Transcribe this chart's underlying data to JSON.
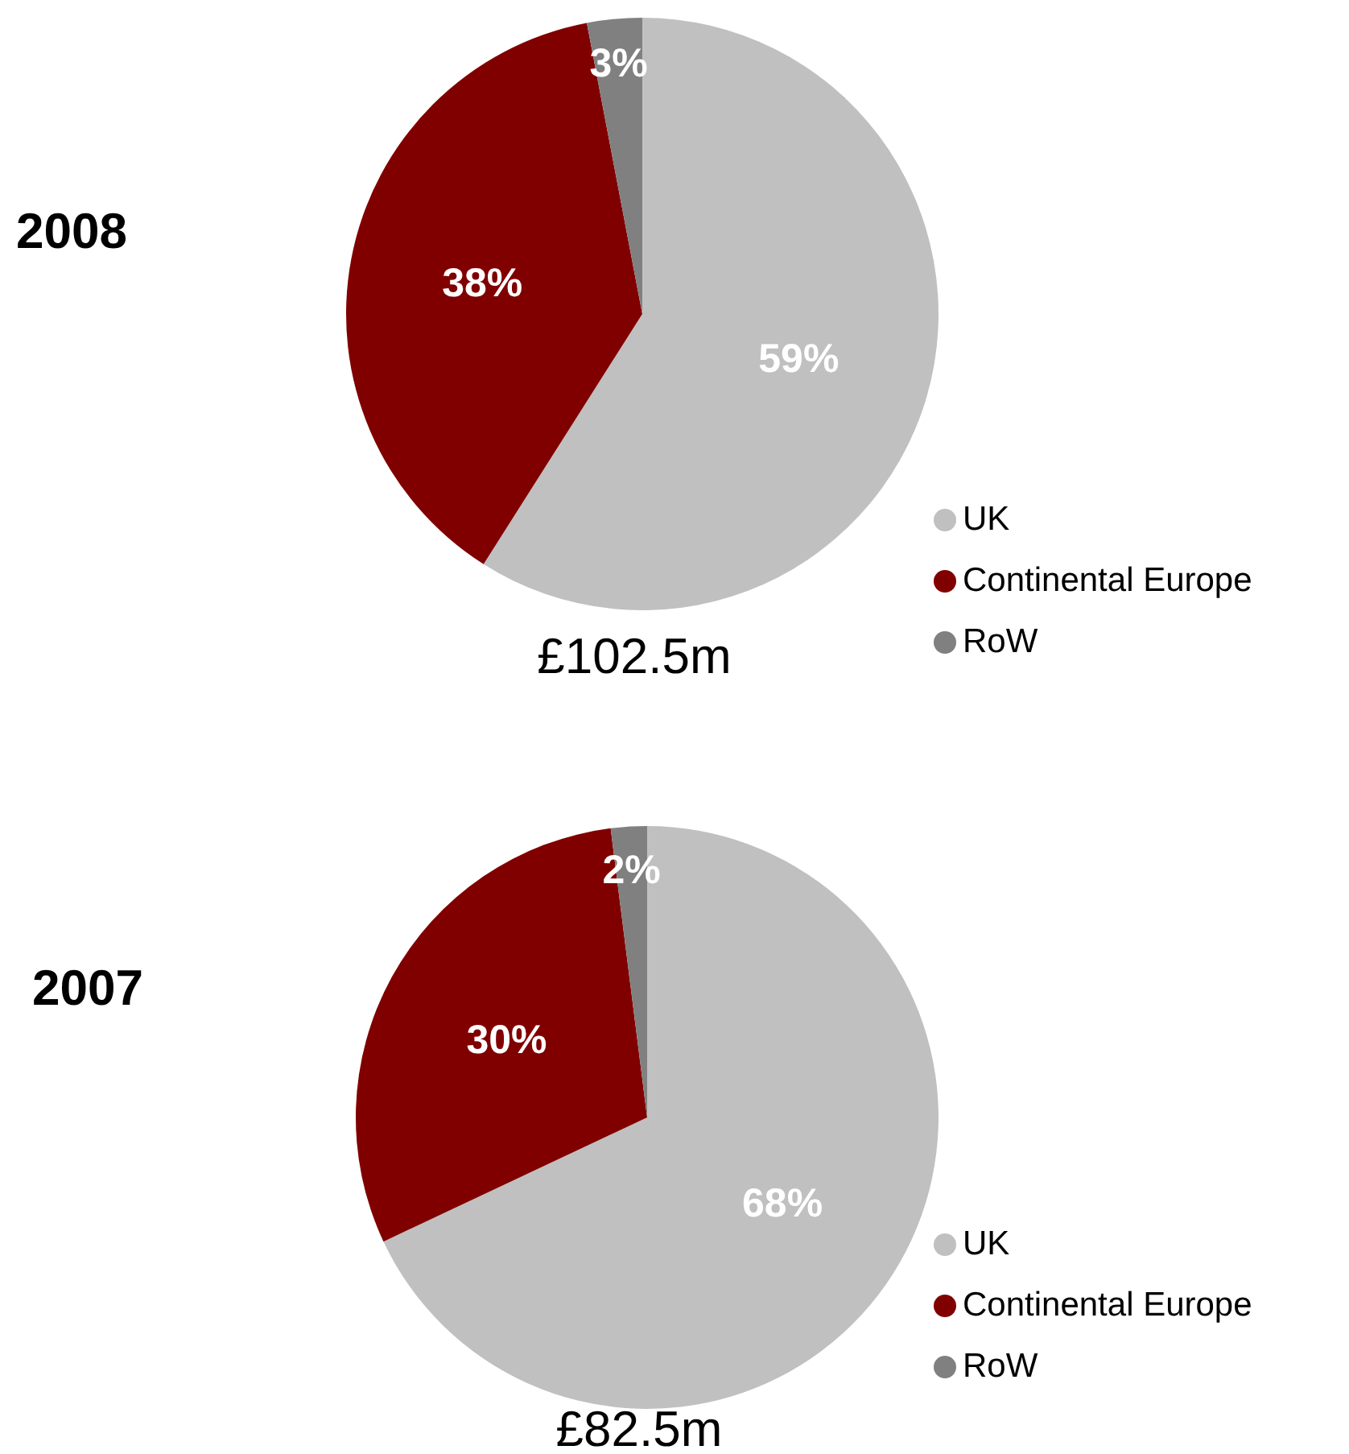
{
  "chart_data": [
    {
      "type": "pie",
      "title": "2008",
      "categories": [
        "UK",
        "Continental Europe",
        "RoW"
      ],
      "values": [
        59,
        38,
        3
      ],
      "colors": [
        "#c0c0c0",
        "#800000",
        "#808080"
      ],
      "value_labels": [
        "59%",
        "38%",
        "3%"
      ],
      "legend": "bottom right",
      "annotations": [
        "£102.5m"
      ]
    },
    {
      "type": "pie",
      "title": "2007",
      "categories": [
        "UK",
        "Continental Europe",
        "RoW"
      ],
      "values": [
        68,
        30,
        2
      ],
      "colors": [
        "#c0c0c0",
        "#800000",
        "#808080"
      ],
      "value_labels": [
        "68%",
        "30%",
        "2%"
      ],
      "legend": "bottom right",
      "annotations": [
        "£82.5m"
      ]
    }
  ]
}
